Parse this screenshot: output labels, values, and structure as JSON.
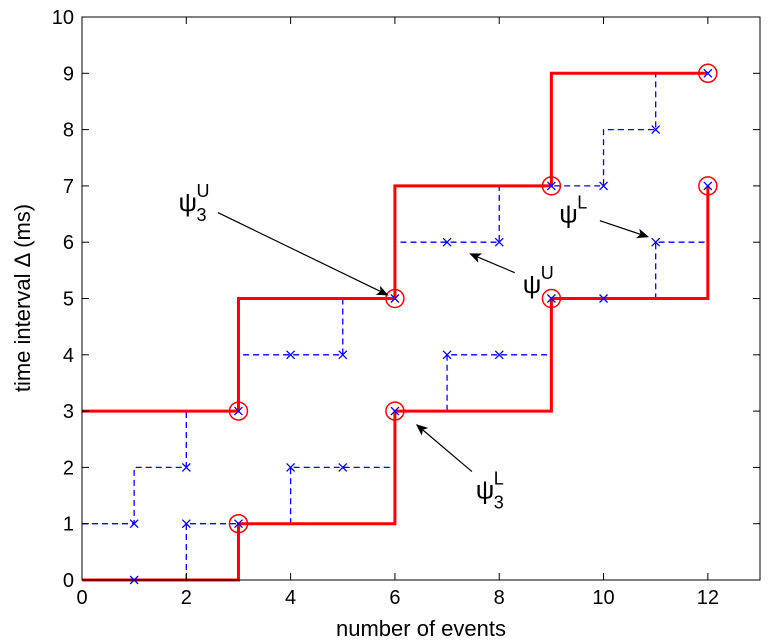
{
  "chart_data": {
    "type": "line",
    "xlabel": "number of events",
    "ylabel": "time interval Δ (ms)",
    "xlim": [
      0,
      13
    ],
    "ylim": [
      0,
      10
    ],
    "xticks": [
      0,
      2,
      4,
      6,
      8,
      10,
      12
    ],
    "yticks": [
      0,
      1,
      2,
      3,
      4,
      5,
      6,
      7,
      8,
      9,
      10
    ],
    "grid": false,
    "colors": {
      "red": "#ff0000",
      "blue": "#0000ff",
      "axis": "#000000"
    },
    "series": [
      {
        "style": "red-solid-step",
        "points": [
          [
            0,
            3
          ],
          [
            3,
            3
          ],
          [
            3,
            5
          ],
          [
            6,
            5
          ],
          [
            6,
            7
          ],
          [
            9,
            7
          ],
          [
            9,
            9
          ],
          [
            12,
            9
          ]
        ]
      },
      {
        "style": "red-solid-step",
        "points": [
          [
            0,
            0
          ],
          [
            3,
            0
          ],
          [
            3,
            1
          ],
          [
            6,
            1
          ],
          [
            6,
            3
          ],
          [
            9,
            3
          ],
          [
            9,
            5
          ],
          [
            12,
            5
          ],
          [
            12,
            7
          ]
        ]
      },
      {
        "style": "blue-dashed-step",
        "markers": [
          [
            1,
            1
          ],
          [
            2,
            2
          ],
          [
            3,
            3
          ],
          [
            4,
            4
          ],
          [
            5,
            4
          ],
          [
            6,
            5
          ],
          [
            7,
            6
          ],
          [
            8,
            6
          ],
          [
            9,
            7
          ],
          [
            10,
            7
          ],
          [
            11,
            8
          ],
          [
            12,
            9
          ]
        ],
        "points": [
          [
            0,
            1
          ],
          [
            1,
            1
          ],
          [
            1,
            2
          ],
          [
            2,
            2
          ],
          [
            2,
            3
          ],
          [
            3,
            3
          ],
          [
            3,
            4
          ],
          [
            5,
            4
          ],
          [
            5,
            5
          ],
          [
            6,
            5
          ],
          [
            6,
            6
          ],
          [
            8,
            6
          ],
          [
            8,
            7
          ],
          [
            10,
            7
          ],
          [
            10,
            8
          ],
          [
            11,
            8
          ],
          [
            11,
            9
          ],
          [
            12,
            9
          ]
        ]
      },
      {
        "style": "blue-dashed-step",
        "markers": [
          [
            1,
            0
          ],
          [
            2,
            1
          ],
          [
            3,
            1
          ],
          [
            4,
            2
          ],
          [
            5,
            2
          ],
          [
            6,
            3
          ],
          [
            7,
            4
          ],
          [
            8,
            4
          ],
          [
            9,
            5
          ],
          [
            10,
            5
          ],
          [
            11,
            6
          ],
          [
            12,
            7
          ]
        ],
        "points": [
          [
            2,
            0
          ],
          [
            2,
            1
          ],
          [
            4,
            1
          ],
          [
            4,
            2
          ],
          [
            6,
            2
          ],
          [
            6,
            3
          ],
          [
            7,
            3
          ],
          [
            7,
            4
          ],
          [
            9,
            4
          ],
          [
            9,
            5
          ],
          [
            11,
            5
          ],
          [
            11,
            6
          ],
          [
            12,
            6
          ]
        ]
      }
    ],
    "circles": [
      [
        3,
        3
      ],
      [
        6,
        5
      ],
      [
        9,
        7
      ],
      [
        12,
        9
      ],
      [
        3,
        1
      ],
      [
        6,
        3
      ],
      [
        9,
        5
      ],
      [
        12,
        7
      ]
    ],
    "annotations": [
      {
        "label": "ψ",
        "sub": "3",
        "sup": "U",
        "text_at": [
          1.85,
          6.55
        ],
        "arrow_to": [
          6,
          5
        ]
      },
      {
        "label": "ψ",
        "sup": "U",
        "text_at": [
          8.45,
          5.1
        ],
        "arrow_to": [
          7.3,
          5.85
        ]
      },
      {
        "label": "ψ",
        "sup": "L",
        "text_at": [
          9.15,
          6.35
        ],
        "arrow_to": [
          11,
          6.05
        ]
      },
      {
        "label": "ψ",
        "sub": "3",
        "sup": "L",
        "text_at": [
          7.55,
          1.45
        ],
        "arrow_to": [
          6.3,
          2.85
        ]
      }
    ]
  }
}
